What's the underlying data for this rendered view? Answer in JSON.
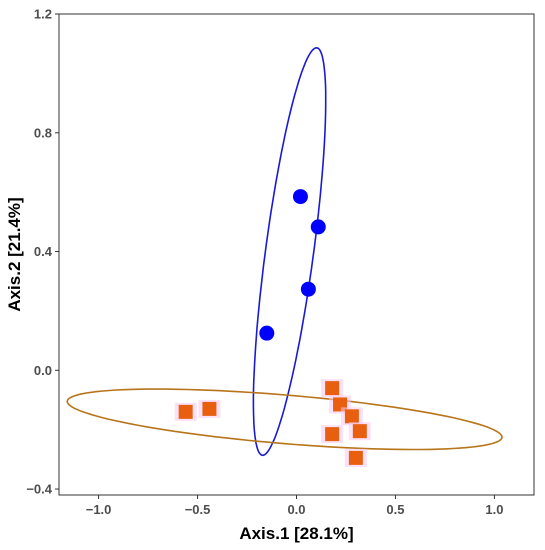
{
  "chart_data": {
    "type": "scatter",
    "xlabel": "Axis.1   [28.1%]",
    "ylabel": "Axis.2   [21.4%]",
    "xlim": [
      -1.2,
      1.2
    ],
    "ylim": [
      -0.42,
      1.2
    ],
    "xticks": [
      -1.0,
      -0.5,
      0.0,
      0.5,
      1.0
    ],
    "yticks": [
      -0.4,
      0.0,
      0.4,
      0.8,
      1.2
    ],
    "xtick_labels": [
      "−1.0",
      "−0.5",
      "0.0",
      "0.5",
      "1.0"
    ],
    "ytick_labels": [
      "−0.4",
      "0.0",
      "0.4",
      "0.8",
      "1.2"
    ],
    "grid": false,
    "series": [
      {
        "marker": "circle",
        "color": "#0000ff",
        "points": [
          {
            "x": 0.02,
            "y": 0.585
          },
          {
            "x": 0.11,
            "y": 0.483
          },
          {
            "x": 0.06,
            "y": 0.273
          },
          {
            "x": -0.15,
            "y": 0.125
          }
        ],
        "ellipse": {
          "color": "#1a1ad6",
          "center": [
            -0.035,
            0.4
          ],
          "semi_major": 0.7,
          "semi_minor": 0.12,
          "direction": [
            0.2,
            0.98
          ]
        }
      },
      {
        "marker": "square",
        "color": "#e8600f",
        "points": [
          {
            "x": -0.56,
            "y": -0.14
          },
          {
            "x": -0.44,
            "y": -0.13
          },
          {
            "x": 0.18,
            "y": -0.06
          },
          {
            "x": 0.22,
            "y": -0.115
          },
          {
            "x": 0.28,
            "y": -0.155
          },
          {
            "x": 0.32,
            "y": -0.205
          },
          {
            "x": 0.18,
            "y": -0.215
          },
          {
            "x": 0.3,
            "y": -0.295
          }
        ],
        "ellipse": {
          "color": "#b8741a",
          "center": [
            -0.06,
            -0.165
          ],
          "semi_major": 1.1,
          "semi_minor": 0.082,
          "direction": [
            1.0,
            -0.055
          ]
        }
      }
    ]
  }
}
